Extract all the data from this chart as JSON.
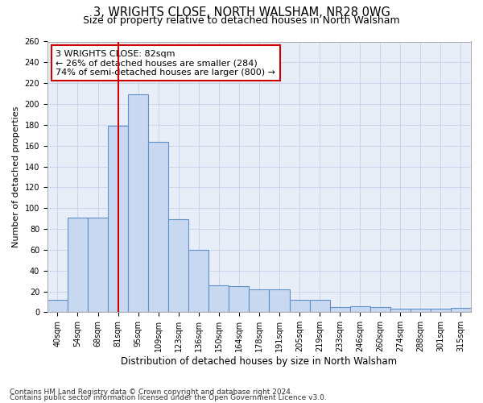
{
  "title1": "3, WRIGHTS CLOSE, NORTH WALSHAM, NR28 0WG",
  "title2": "Size of property relative to detached houses in North Walsham",
  "xlabel": "Distribution of detached houses by size in North Walsham",
  "ylabel": "Number of detached properties",
  "categories": [
    "40sqm",
    "54sqm",
    "68sqm",
    "81sqm",
    "95sqm",
    "109sqm",
    "123sqm",
    "136sqm",
    "150sqm",
    "164sqm",
    "178sqm",
    "191sqm",
    "205sqm",
    "219sqm",
    "233sqm",
    "246sqm",
    "260sqm",
    "274sqm",
    "288sqm",
    "301sqm",
    "315sqm"
  ],
  "values": [
    12,
    91,
    91,
    179,
    209,
    164,
    89,
    60,
    26,
    25,
    22,
    22,
    12,
    12,
    5,
    6,
    5,
    3,
    3,
    3,
    4
  ],
  "bar_color": "#c8d8f0",
  "bar_edge_color": "#6090c8",
  "red_line_x": 3.5,
  "annotation_line1": "3 WRIGHTS CLOSE: 82sqm",
  "annotation_line2": "← 26% of detached houses are smaller (284)",
  "annotation_line3": "74% of semi-detached houses are larger (800) →",
  "annotation_box_color": "#ffffff",
  "annotation_box_edge": "#cc0000",
  "red_line_color": "#cc0000",
  "ylim": [
    0,
    260
  ],
  "yticks": [
    0,
    20,
    40,
    60,
    80,
    100,
    120,
    140,
    160,
    180,
    200,
    220,
    240,
    260
  ],
  "footnote1": "Contains HM Land Registry data © Crown copyright and database right 2024.",
  "footnote2": "Contains public sector information licensed under the Open Government Licence v3.0.",
  "background_color": "#e8eef8",
  "grid_color": "#c5cfe8",
  "title1_fontsize": 10.5,
  "title2_fontsize": 9,
  "xlabel_fontsize": 8.5,
  "ylabel_fontsize": 8,
  "tick_fontsize": 7,
  "annotation_fontsize": 8,
  "footnote_fontsize": 6.5
}
